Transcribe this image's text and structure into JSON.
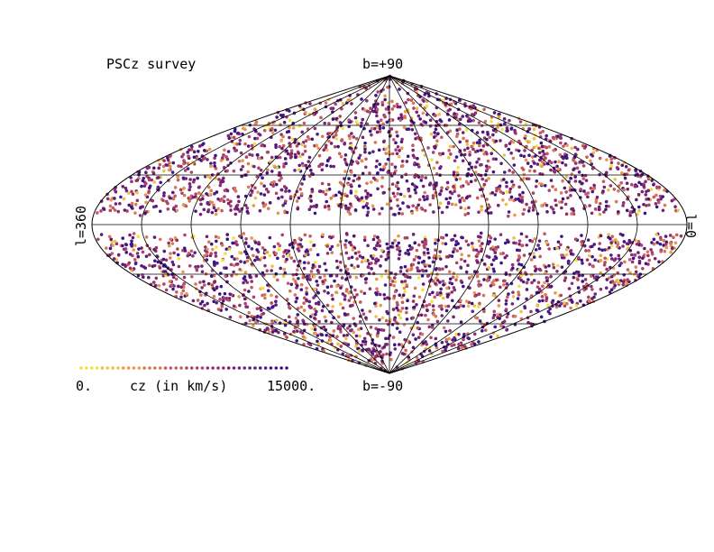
{
  "title": "PSCz survey",
  "labels": {
    "north_pole": "b=+90",
    "south_pole": "b=-90",
    "left_edge": "l=360",
    "right_edge": "l=0"
  },
  "colorbar": {
    "min_label": "0.",
    "max_label": "15000.",
    "title": "cz (in km/s)",
    "colors": [
      "#f2e33a",
      "#eec044",
      "#e79a4e",
      "#d97756",
      "#c65a5f",
      "#ad4366",
      "#92306e",
      "#742276",
      "#551a7e",
      "#3c1585"
    ]
  },
  "projection": "sinusoidal (Sanson-Flamsteed)",
  "graticule": {
    "longitude_step_deg": 30,
    "latitude_step_deg": 30
  },
  "zone_of_avoidance_latitude_deg": 5
}
